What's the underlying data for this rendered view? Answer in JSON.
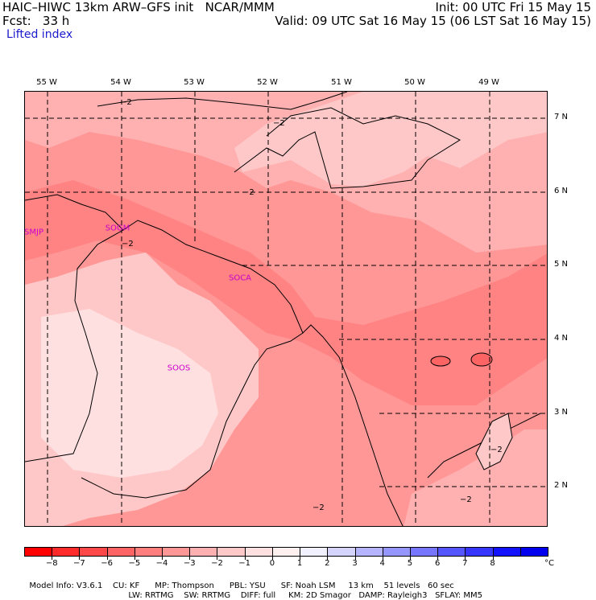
{
  "header": {
    "model": "HAIC–HIWC 13km ARW–GFS init   NCAR/MMM",
    "init": "Init: 00 UTC Fri 15 May 15",
    "fcst": "Fcst:   33 h",
    "valid": "Valid: 09 UTC Sat 16 May 15 (06 LST Sat 16 May 15)",
    "field": "Lifted index"
  },
  "map": {
    "lon_labels": [
      "55 W",
      "54 W",
      "53 W",
      "52 W",
      "51 W",
      "50 W",
      "49 W"
    ],
    "lat_labels": [
      "7 N",
      "6 N",
      "5 N",
      "4 N",
      "3 N",
      "2 N"
    ],
    "stations": [
      "SMJP",
      "SOGM",
      "SOCA",
      "SOOS"
    ],
    "contour_labels": [
      "−2",
      "−2",
      "−2",
      "−2",
      "−2",
      "−2",
      "−2"
    ]
  },
  "legend": {
    "colors": [
      "#ff0000",
      "#ff2a2a",
      "#ff4949",
      "#ff6464",
      "#ff7e7e",
      "#ff9797",
      "#ffb0b0",
      "#ffc8c8",
      "#ffe0e0",
      "#fff0f0",
      "#f0f0ff",
      "#d4d4ff",
      "#b4b4ff",
      "#9696ff",
      "#7676ff",
      "#5656ff",
      "#3636ff",
      "#1212ff",
      "#0000ee"
    ],
    "tick_labels": [
      "−8",
      "−7",
      "−6",
      "−5",
      "−4",
      "−3",
      "−2",
      "−1",
      "0",
      "1",
      "2",
      "3",
      "4",
      "5",
      "6",
      "7",
      "8"
    ],
    "unit": "°C"
  },
  "footer": {
    "line1": [
      "Model Info: V3.6.1",
      "CU: KF",
      "MP: Thompson",
      "PBL: YSU",
      "SF: Noah LSM",
      "13 km",
      "51 levels",
      "60 sec"
    ],
    "line2": [
      "LW: RRTMG",
      "SW: RRTMG",
      "DIFF: full",
      "KM: 2D Smagor",
      "DAMP: Rayleigh3",
      "SFLAY: MM5"
    ]
  }
}
